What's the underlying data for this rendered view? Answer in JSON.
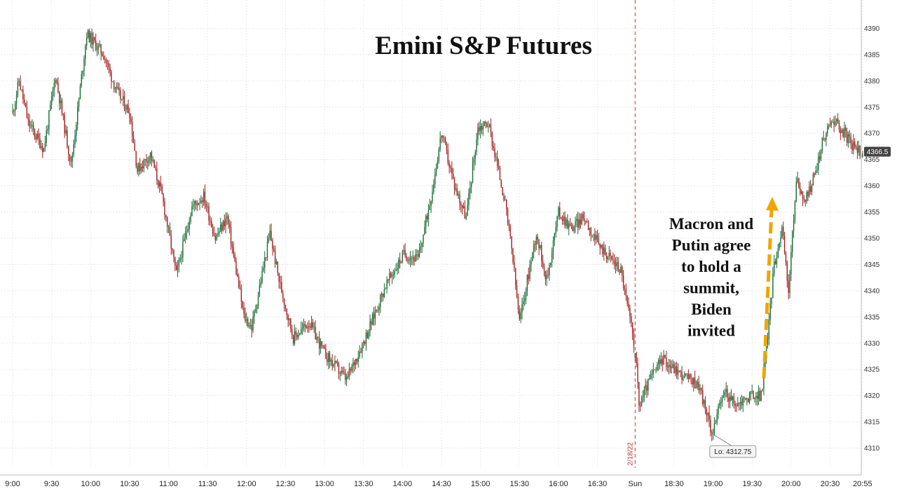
{
  "chart_data": {
    "type": "candlestick",
    "title": "Emini S&P Futures",
    "ylim": [
      4307,
      4393
    ],
    "y_ticks": [
      4310,
      4315,
      4320,
      4325,
      4330,
      4335,
      4340,
      4345,
      4350,
      4355,
      4360,
      4365,
      4370,
      4375,
      4380,
      4385,
      4390
    ],
    "x_ticks": [
      {
        "label": "9:00",
        "t": 0
      },
      {
        "label": "9:30",
        "t": 30
      },
      {
        "label": "10:00",
        "t": 60
      },
      {
        "label": "10:30",
        "t": 90
      },
      {
        "label": "11:00",
        "t": 120
      },
      {
        "label": "11:30",
        "t": 150
      },
      {
        "label": "12:00",
        "t": 180
      },
      {
        "label": "12:30",
        "t": 210
      },
      {
        "label": "13:00",
        "t": 240
      },
      {
        "label": "13:30",
        "t": 270
      },
      {
        "label": "14:00",
        "t": 300
      },
      {
        "label": "14:30",
        "t": 330
      },
      {
        "label": "15:00",
        "t": 360
      },
      {
        "label": "15:30",
        "t": 390
      },
      {
        "label": "16:00",
        "t": 420
      },
      {
        "label": "16:30",
        "t": 450
      },
      {
        "label": "Sun",
        "t": 479
      },
      {
        "label": "18:30",
        "t": 509
      },
      {
        "label": "19:00",
        "t": 539
      },
      {
        "label": "19:30",
        "t": 569
      },
      {
        "label": "20:00",
        "t": 599
      },
      {
        "label": "20:30",
        "t": 629
      },
      {
        "label": "20:55",
        "t": 654
      }
    ],
    "series": [
      {
        "name": "Emini S&P Futures",
        "key_points": [
          {
            "t": 0,
            "price": 4374
          },
          {
            "t": 5,
            "price": 4380
          },
          {
            "t": 12,
            "price": 4372
          },
          {
            "t": 24,
            "price": 4367
          },
          {
            "t": 33,
            "price": 4381
          },
          {
            "t": 45,
            "price": 4364
          },
          {
            "t": 57,
            "price": 4389
          },
          {
            "t": 70,
            "price": 4385
          },
          {
            "t": 80,
            "price": 4378
          },
          {
            "t": 90,
            "price": 4374
          },
          {
            "t": 96,
            "price": 4363
          },
          {
            "t": 106,
            "price": 4366
          },
          {
            "t": 115,
            "price": 4358
          },
          {
            "t": 126,
            "price": 4343
          },
          {
            "t": 138,
            "price": 4356
          },
          {
            "t": 147,
            "price": 4358
          },
          {
            "t": 156,
            "price": 4350
          },
          {
            "t": 165,
            "price": 4354
          },
          {
            "t": 178,
            "price": 4335
          },
          {
            "t": 184,
            "price": 4333
          },
          {
            "t": 198,
            "price": 4351
          },
          {
            "t": 205,
            "price": 4342
          },
          {
            "t": 216,
            "price": 4331
          },
          {
            "t": 228,
            "price": 4334
          },
          {
            "t": 240,
            "price": 4328
          },
          {
            "t": 257,
            "price": 4323
          },
          {
            "t": 273,
            "price": 4332
          },
          {
            "t": 287,
            "price": 4341
          },
          {
            "t": 301,
            "price": 4347
          },
          {
            "t": 312,
            "price": 4346
          },
          {
            "t": 322,
            "price": 4358
          },
          {
            "t": 330,
            "price": 4370
          },
          {
            "t": 340,
            "price": 4360
          },
          {
            "t": 349,
            "price": 4354
          },
          {
            "t": 358,
            "price": 4371
          },
          {
            "t": 366,
            "price": 4372
          },
          {
            "t": 378,
            "price": 4358
          },
          {
            "t": 384,
            "price": 4348
          },
          {
            "t": 390,
            "price": 4334
          },
          {
            "t": 396,
            "price": 4342
          },
          {
            "t": 403,
            "price": 4351
          },
          {
            "t": 411,
            "price": 4342
          },
          {
            "t": 420,
            "price": 4355
          },
          {
            "t": 430,
            "price": 4352
          },
          {
            "t": 440,
            "price": 4354
          },
          {
            "t": 450,
            "price": 4349
          },
          {
            "t": 468,
            "price": 4344
          },
          {
            "t": 479,
            "price": 4329
          },
          {
            "t": 482,
            "price": 4318
          },
          {
            "t": 490,
            "price": 4323
          },
          {
            "t": 500,
            "price": 4327
          },
          {
            "t": 515,
            "price": 4324
          },
          {
            "t": 528,
            "price": 4322
          },
          {
            "t": 538,
            "price": 4313
          },
          {
            "t": 548,
            "price": 4321
          },
          {
            "t": 556,
            "price": 4318
          },
          {
            "t": 568,
            "price": 4320
          },
          {
            "t": 576,
            "price": 4320
          },
          {
            "t": 580,
            "price": 4329
          },
          {
            "t": 586,
            "price": 4345
          },
          {
            "t": 592,
            "price": 4352
          },
          {
            "t": 597,
            "price": 4340
          },
          {
            "t": 603,
            "price": 4361
          },
          {
            "t": 610,
            "price": 4357
          },
          {
            "t": 617,
            "price": 4362
          },
          {
            "t": 624,
            "price": 4369
          },
          {
            "t": 631,
            "price": 4373
          },
          {
            "t": 640,
            "price": 4370
          },
          {
            "t": 648,
            "price": 4367
          },
          {
            "t": 654,
            "price": 4366.5
          }
        ]
      }
    ],
    "last_price_label": "4366.5",
    "session_divider_label": "2/18/22",
    "low_label": "Lo: 4312.75",
    "annotation": {
      "lines": [
        "Macron and",
        "Putin agree",
        "to hold a",
        "summit,",
        "Biden",
        "invited"
      ]
    },
    "colors": {
      "up": "#1a6b35",
      "down": "#a31f1f",
      "divider": "#cc3333",
      "arrow": "#f0a500"
    },
    "grid": true
  }
}
